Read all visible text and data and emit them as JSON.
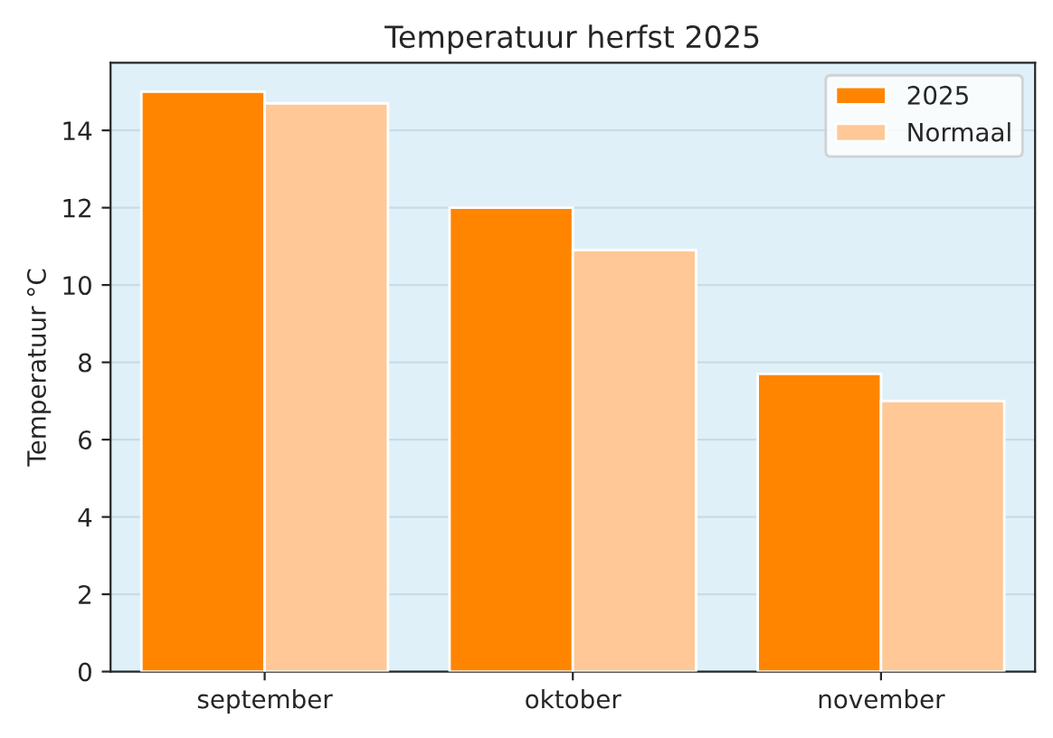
{
  "chart_data": {
    "type": "bar",
    "title": "Temperatuur herfst 2025",
    "ylabel": "Temperatuur °C",
    "categories": [
      "september",
      "oktober",
      "november"
    ],
    "series": [
      {
        "name": "2025",
        "color": "#ff8500",
        "values": [
          15.0,
          12.0,
          7.7
        ]
      },
      {
        "name": "Normaal",
        "color": "#ffc896",
        "values": [
          14.7,
          10.9,
          7.0
        ]
      }
    ],
    "ylim": [
      0,
      15.75
    ],
    "yticks": [
      0,
      2,
      4,
      6,
      8,
      10,
      12,
      14
    ],
    "grid": "y",
    "legend": "top right"
  }
}
